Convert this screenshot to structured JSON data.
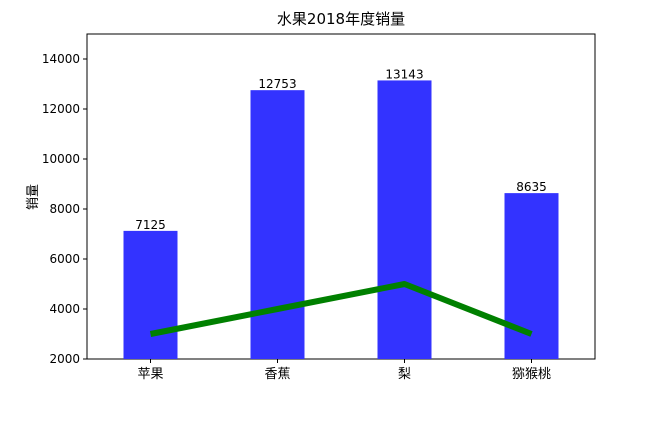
{
  "chart_data": {
    "type": "bar",
    "title": "水果2018年度销量",
    "xlabel": "",
    "ylabel": "销量",
    "categories": [
      "苹果",
      "香蕉",
      "梨",
      "猕猴桃"
    ],
    "series": [
      {
        "type": "bar",
        "values": [
          7125,
          12753,
          13143,
          8635
        ],
        "color": "#3333ff"
      },
      {
        "type": "line",
        "values": [
          3000,
          4000,
          5000,
          3000
        ],
        "color": "#008000"
      }
    ],
    "data_labels": [
      "7125",
      "12753",
      "13143",
      "8635"
    ],
    "ylim": [
      2000,
      15000
    ],
    "yticks": [
      2000,
      4000,
      6000,
      8000,
      10000,
      12000,
      14000
    ],
    "ytick_labels": [
      "2000",
      "4000",
      "6000",
      "8000",
      "10000",
      "12000",
      "14000"
    ],
    "grid": false,
    "legend": "none"
  }
}
